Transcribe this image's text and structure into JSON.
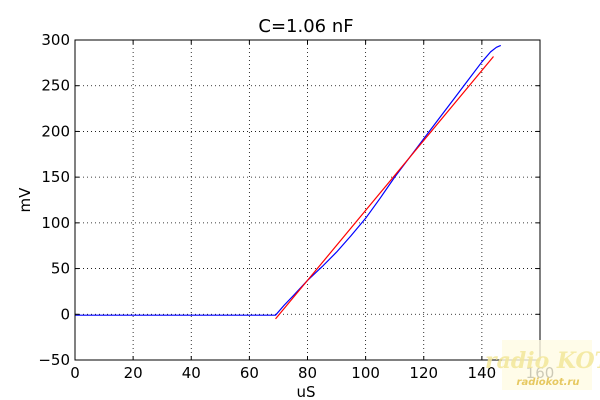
{
  "chart_data": {
    "type": "line",
    "title": "C=1.06 nF",
    "xlabel": "uS",
    "ylabel": "mV",
    "xlim": [
      0,
      160
    ],
    "ylim": [
      -50,
      300
    ],
    "grid": true,
    "x_ticks": [
      0,
      20,
      40,
      60,
      80,
      100,
      120,
      140,
      160
    ],
    "y_ticks": [
      -50,
      0,
      50,
      100,
      150,
      200,
      250,
      300
    ],
    "x_tick_labels": [
      "0",
      "20",
      "40",
      "60",
      "80",
      "100",
      "120",
      "140",
      "160"
    ],
    "y_tick_labels": [
      "−50",
      "0",
      "50",
      "100",
      "150",
      "200",
      "250",
      "300"
    ],
    "series": [
      {
        "color": "#0000ff",
        "x": [
          0,
          10,
          20,
          30,
          40,
          50,
          60,
          65,
          69,
          72,
          75,
          80,
          85,
          90,
          95,
          100,
          105,
          110,
          115,
          120,
          125,
          130,
          135,
          140,
          143,
          145,
          146.5
        ],
        "y": [
          -1,
          -1,
          -1,
          -1,
          -1,
          -1,
          -1,
          -1,
          -1,
          10,
          20,
          37,
          52,
          68,
          86,
          105,
          127,
          150,
          171,
          192,
          213,
          234,
          255,
          276,
          287,
          292,
          294
        ]
      },
      {
        "color": "#ff0000",
        "x": [
          69,
          144
        ],
        "y": [
          -5,
          282
        ]
      }
    ]
  },
  "watermark": {
    "logo": "radio KOT",
    "url": "radiokot.ru"
  }
}
